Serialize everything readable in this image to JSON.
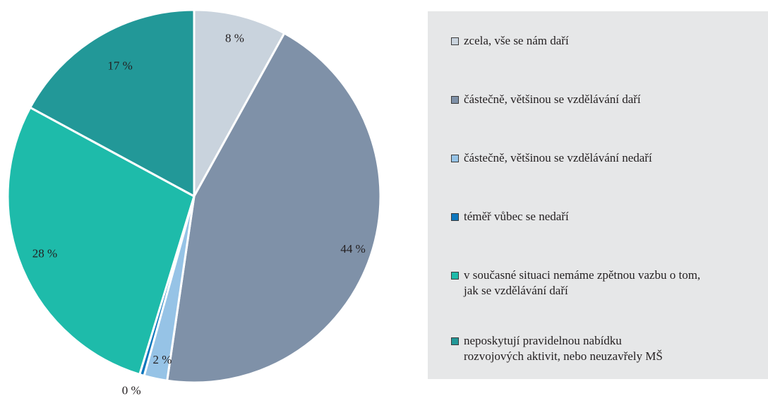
{
  "chart_data": {
    "type": "pie",
    "categories": [
      "zcela, vše se nám daří",
      "částečně, většinou se vzdělávání daří",
      "částečně, většinou se vzdělávání nedaří",
      "téměř vůbec se nedaří",
      "v současné situaci nemáme zpětnou vazbu o tom, jak se vzdělávání daří",
      "neposkytují pravidelnou nabídku rozvojových aktivit, nebo neuzavřely MŠ"
    ],
    "values": [
      8,
      44,
      2,
      0.4,
      28,
      17
    ],
    "value_labels": [
      "8 %",
      "44 %",
      "2 %",
      "0 %",
      "28 %",
      "17 %"
    ],
    "colors": [
      "#c9d3dd",
      "#7f91a8",
      "#96c3e6",
      "#0e77bd",
      "#1ebbaa",
      "#229898"
    ],
    "start": "12 o'clock",
    "direction": "clockwise",
    "legend_position": "right",
    "title": ""
  },
  "legend": {
    "items": [
      {
        "label": "zcela, vše se nám daří",
        "color": "#c9d3dd"
      },
      {
        "label": "částečně, většinou se vzdělávání daří",
        "color": "#7f91a8"
      },
      {
        "label": "částečně, většinou se vzdělávání nedaří",
        "color": "#96c3e6"
      },
      {
        "label": "téměř vůbec se nedaří",
        "color": "#0e77bd"
      },
      {
        "label": "v současné situaci nemáme zpětnou vazbu o tom,\njak se vzdělávání daří",
        "color": "#1ebbaa"
      },
      {
        "label": "neposkytují pravidelnou nabídku\nrozvojových aktivit, nebo neuzavřely MŠ",
        "color": "#229898"
      }
    ]
  }
}
